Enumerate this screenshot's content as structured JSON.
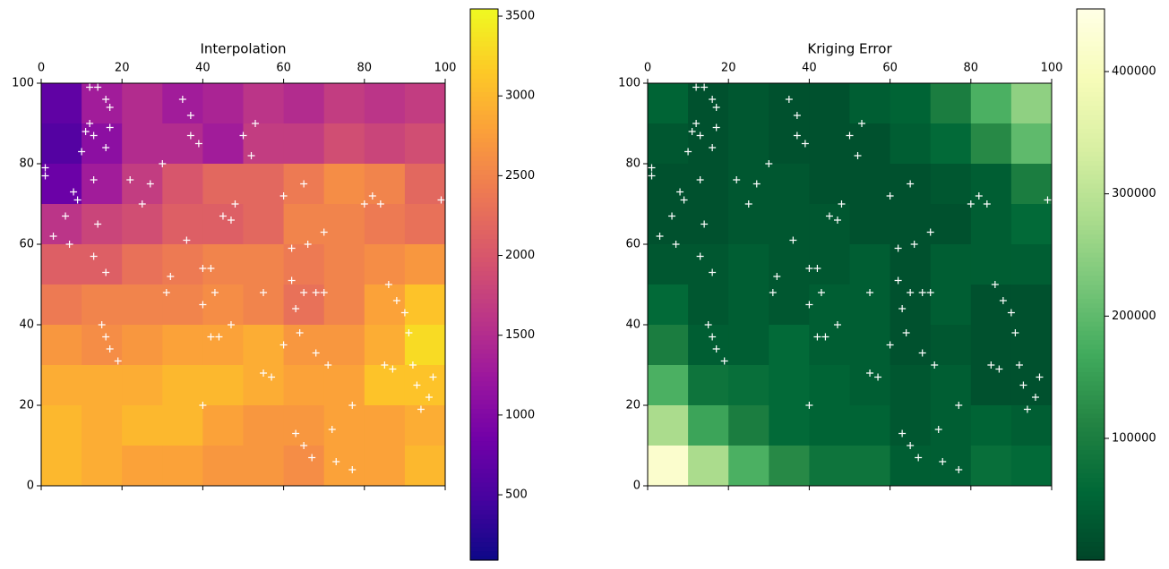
{
  "chart_data": [
    {
      "type": "heatmap",
      "title": "Interpolation",
      "colormap": "plasma",
      "xlim": [
        0,
        100
      ],
      "ylim": [
        0,
        100
      ],
      "xticks": [
        0,
        20,
        40,
        60,
        80,
        100
      ],
      "yticks": [
        0,
        20,
        40,
        60,
        80,
        100
      ],
      "clim": [
        91,
        3545
      ],
      "cticks": [
        500,
        1000,
        1500,
        2000,
        2500,
        3000,
        3500
      ],
      "z": [
        [
          700,
          1300,
          1500,
          1300,
          1400,
          1600,
          1500,
          1700,
          1600,
          1700
        ],
        [
          600,
          1100,
          1500,
          1500,
          1300,
          1700,
          1700,
          1900,
          1800,
          1900
        ],
        [
          800,
          1300,
          1700,
          2000,
          2200,
          2200,
          2400,
          2600,
          2500,
          2200
        ],
        [
          1600,
          1800,
          1900,
          2100,
          2100,
          2200,
          2500,
          2500,
          2400,
          2300
        ],
        [
          2100,
          2100,
          2300,
          2400,
          2500,
          2500,
          2400,
          2500,
          2600,
          2700
        ],
        [
          2400,
          2500,
          2500,
          2500,
          2600,
          2500,
          2300,
          2500,
          2800,
          3100
        ],
        [
          2700,
          2600,
          2700,
          2800,
          2800,
          2900,
          2700,
          2700,
          2900,
          3300
        ],
        [
          2900,
          2900,
          2900,
          3000,
          3000,
          2900,
          2800,
          2800,
          3100,
          3100
        ],
        [
          3000,
          2900,
          3000,
          3000,
          2800,
          2700,
          2700,
          2800,
          2800,
          2900
        ],
        [
          3000,
          2900,
          2800,
          2800,
          2700,
          2700,
          2600,
          2800,
          2800,
          3000
        ]
      ],
      "points": {
        "color": "#ffffff",
        "x": [
          1,
          1,
          3,
          6,
          7,
          8,
          9,
          10,
          11,
          12,
          13,
          12,
          14,
          16,
          17,
          17,
          16,
          13,
          14,
          13,
          16,
          15,
          16,
          17,
          19,
          22,
          25,
          27,
          30,
          32,
          35,
          37,
          37,
          39,
          40,
          42,
          43,
          40,
          42,
          40,
          45,
          47,
          48,
          50,
          52,
          53,
          55,
          55,
          57,
          60,
          62,
          63,
          64,
          65,
          68,
          70,
          70,
          68,
          71,
          72,
          73,
          77,
          77,
          80,
          82,
          84,
          85,
          87,
          86,
          88,
          90,
          91,
          92,
          93,
          94,
          96,
          97,
          99,
          63,
          65,
          67,
          44,
          47,
          36,
          31,
          62,
          66,
          60,
          65
        ],
        "y": [
          79,
          77,
          62,
          67,
          60,
          73,
          71,
          83,
          88,
          90,
          87,
          99,
          99,
          96,
          94,
          89,
          84,
          76,
          65,
          57,
          53,
          40,
          37,
          34,
          31,
          76,
          70,
          75,
          80,
          52,
          96,
          87,
          92,
          85,
          54,
          54,
          48,
          45,
          37,
          20,
          67,
          66,
          70,
          87,
          82,
          90,
          48,
          28,
          27,
          35,
          51,
          44,
          38,
          48,
          48,
          63,
          48,
          33,
          30,
          14,
          6,
          4,
          20,
          70,
          72,
          70,
          30,
          29,
          50,
          46,
          43,
          38,
          30,
          25,
          19,
          22,
          27,
          71,
          13,
          10,
          7,
          37,
          40,
          61,
          48,
          59,
          60,
          72,
          75
        ]
      }
    },
    {
      "type": "heatmap",
      "title": "Kriging Error",
      "colormap": "YlGn_r",
      "xlim": [
        0,
        100
      ],
      "ylim": [
        0,
        100
      ],
      "xticks": [
        0,
        20,
        40,
        60,
        80,
        100
      ],
      "yticks": [
        0,
        20,
        40,
        60,
        80,
        100
      ],
      "clim": [
        500,
        451200
      ],
      "cticks": [
        100000,
        200000,
        300000,
        400000
      ],
      "z": [
        [
          50000,
          20000,
          30000,
          20000,
          20000,
          40000,
          50000,
          100000,
          180000,
          250000
        ],
        [
          30000,
          20000,
          30000,
          20000,
          20000,
          20000,
          40000,
          60000,
          120000,
          200000
        ],
        [
          20000,
          20000,
          30000,
          30000,
          20000,
          20000,
          20000,
          30000,
          40000,
          100000
        ],
        [
          20000,
          20000,
          30000,
          30000,
          30000,
          20000,
          20000,
          20000,
          40000,
          60000
        ],
        [
          30000,
          30000,
          40000,
          30000,
          30000,
          40000,
          20000,
          40000,
          40000,
          40000
        ],
        [
          60000,
          30000,
          40000,
          30000,
          40000,
          40000,
          20000,
          40000,
          20000,
          20000
        ],
        [
          100000,
          40000,
          40000,
          60000,
          40000,
          40000,
          20000,
          30000,
          20000,
          20000
        ],
        [
          180000,
          80000,
          70000,
          60000,
          50000,
          40000,
          30000,
          40000,
          20000,
          20000
        ],
        [
          280000,
          160000,
          100000,
          60000,
          50000,
          50000,
          30000,
          40000,
          50000,
          40000
        ],
        [
          420000,
          280000,
          180000,
          120000,
          80000,
          80000,
          40000,
          40000,
          70000,
          60000
        ]
      ],
      "points": {
        "color": "#ffffff",
        "x": [
          1,
          1,
          3,
          6,
          7,
          8,
          9,
          10,
          11,
          12,
          13,
          12,
          14,
          16,
          17,
          17,
          16,
          13,
          14,
          13,
          16,
          15,
          16,
          17,
          19,
          22,
          25,
          27,
          30,
          32,
          35,
          37,
          37,
          39,
          40,
          42,
          43,
          40,
          42,
          40,
          45,
          47,
          48,
          50,
          52,
          53,
          55,
          55,
          57,
          60,
          62,
          63,
          64,
          65,
          68,
          70,
          70,
          68,
          71,
          72,
          73,
          77,
          77,
          80,
          82,
          84,
          85,
          87,
          86,
          88,
          90,
          91,
          92,
          93,
          94,
          96,
          97,
          99,
          63,
          65,
          67,
          44,
          47,
          36,
          31,
          62,
          66,
          60,
          65
        ],
        "y": [
          79,
          77,
          62,
          67,
          60,
          73,
          71,
          83,
          88,
          90,
          87,
          99,
          99,
          96,
          94,
          89,
          84,
          76,
          65,
          57,
          53,
          40,
          37,
          34,
          31,
          76,
          70,
          75,
          80,
          52,
          96,
          87,
          92,
          85,
          54,
          54,
          48,
          45,
          37,
          20,
          67,
          66,
          70,
          87,
          82,
          90,
          48,
          28,
          27,
          35,
          51,
          44,
          38,
          48,
          48,
          63,
          48,
          33,
          30,
          14,
          6,
          4,
          20,
          70,
          72,
          70,
          30,
          29,
          50,
          46,
          43,
          38,
          30,
          25,
          19,
          22,
          27,
          71,
          13,
          10,
          7,
          37,
          40,
          61,
          48,
          59,
          60,
          72,
          75
        ]
      }
    }
  ]
}
